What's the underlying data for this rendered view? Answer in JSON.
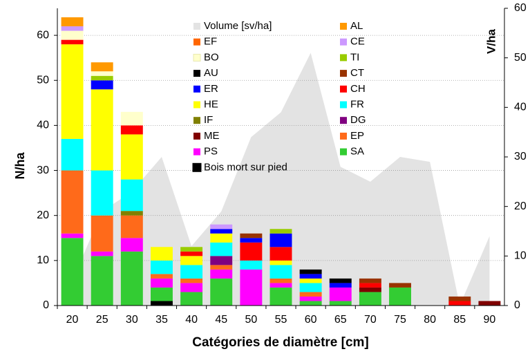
{
  "chart_data": {
    "type": "bar",
    "x_label": "Catégories de diamètre [cm]",
    "y_label": "N/ha",
    "y2_label": "V/ha",
    "categories": [
      "20",
      "25",
      "30",
      "35",
      "40",
      "45",
      "50",
      "55",
      "60",
      "65",
      "70",
      "75",
      "80",
      "85",
      "90"
    ],
    "ylim": [
      0,
      66
    ],
    "yticks": [
      0,
      10,
      20,
      30,
      40,
      50,
      60
    ],
    "y2lim": [
      0,
      60
    ],
    "y2ticks": [
      0,
      10,
      20,
      30,
      40,
      50,
      60
    ],
    "series": [
      {
        "name": "Volume [sv/ha]",
        "type": "area",
        "axis": "y2",
        "color": "#e3e3e3",
        "values": [
          5,
          19,
          23,
          30,
          12,
          19,
          34,
          39,
          51,
          28,
          25,
          30,
          29,
          0,
          14
        ]
      },
      {
        "name": "AL",
        "color": "#ff9900",
        "values": [
          2,
          2,
          0,
          0,
          0,
          0,
          0,
          0,
          0,
          0,
          0,
          0,
          0,
          0,
          0
        ]
      },
      {
        "name": "EF",
        "color": "#ff6600",
        "values": [
          0,
          0,
          0,
          0,
          0,
          0,
          0,
          0,
          0,
          0,
          0,
          0,
          0,
          0,
          0
        ]
      },
      {
        "name": "CE",
        "color": "#cc99ff",
        "values": [
          1,
          0,
          0,
          0,
          0,
          1,
          0,
          0,
          0,
          0,
          0,
          0,
          0,
          0,
          0
        ]
      },
      {
        "name": "BO",
        "color": "#ffffcc",
        "values": [
          2,
          1,
          3,
          0,
          0,
          0,
          0,
          0,
          0,
          0,
          0,
          0,
          0,
          0,
          0
        ]
      },
      {
        "name": "TI",
        "color": "#99cc00",
        "values": [
          0,
          1,
          0,
          0,
          1,
          0,
          0,
          1,
          0,
          0,
          0,
          0,
          0,
          0,
          0
        ]
      },
      {
        "name": "AU",
        "color": "#000000",
        "values": [
          0,
          0,
          0,
          0,
          0,
          0,
          0,
          0,
          1,
          1,
          0,
          0,
          0,
          0,
          0
        ]
      },
      {
        "name": "CT",
        "color": "#993300",
        "values": [
          0,
          0,
          0,
          0,
          0,
          0,
          1,
          0,
          0,
          0,
          1,
          1,
          0,
          1,
          0
        ]
      },
      {
        "name": "ER",
        "color": "#0000ff",
        "values": [
          0,
          2,
          0,
          0,
          0,
          1,
          1,
          3,
          1,
          1,
          0,
          0,
          0,
          0,
          0
        ]
      },
      {
        "name": "CH",
        "color": "#ff0000",
        "values": [
          1,
          0,
          2,
          0,
          1,
          0,
          4,
          3,
          0,
          0,
          1,
          0,
          0,
          1,
          0
        ]
      },
      {
        "name": "HE",
        "color": "#ffff00",
        "values": [
          21,
          18,
          10,
          3,
          2,
          2,
          0,
          1,
          1,
          0,
          0,
          0,
          0,
          0,
          0
        ]
      },
      {
        "name": "FR",
        "color": "#00ffff",
        "values": [
          7,
          10,
          7,
          3,
          3,
          3,
          2,
          3,
          2,
          0,
          0,
          0,
          0,
          0,
          0
        ]
      },
      {
        "name": "IF",
        "color": "#808000",
        "values": [
          0,
          0,
          1,
          0,
          0,
          0,
          0,
          0,
          0,
          0,
          0,
          0,
          0,
          0,
          0
        ]
      },
      {
        "name": "DG",
        "color": "#800080",
        "values": [
          0,
          0,
          0,
          0,
          0,
          2,
          0,
          0,
          0,
          0,
          0,
          0,
          0,
          0,
          0
        ]
      },
      {
        "name": "ME",
        "color": "#800000",
        "values": [
          0,
          0,
          0,
          0,
          0,
          0,
          0,
          0,
          0,
          0,
          1,
          0,
          0,
          0,
          1
        ]
      },
      {
        "name": "EP",
        "color": "#ff6a1a",
        "values": [
          14,
          8,
          5,
          1,
          1,
          1,
          0,
          1,
          1,
          0,
          0,
          0,
          0,
          0,
          0
        ]
      },
      {
        "name": "PS",
        "color": "#ff00ff",
        "values": [
          1,
          1,
          3,
          2,
          2,
          2,
          8,
          1,
          1,
          3,
          0,
          0,
          0,
          0,
          0
        ]
      },
      {
        "name": "SA",
        "color": "#33cc33",
        "values": [
          15,
          11,
          12,
          3,
          3,
          6,
          0,
          4,
          1,
          1,
          3,
          4,
          0,
          0,
          0
        ]
      },
      {
        "name": "Bois mort sur pied",
        "color": "#000000",
        "values": [
          0,
          0,
          0,
          1,
          0,
          0,
          0,
          0,
          0,
          0,
          0,
          0,
          0,
          0,
          0
        ]
      }
    ]
  }
}
